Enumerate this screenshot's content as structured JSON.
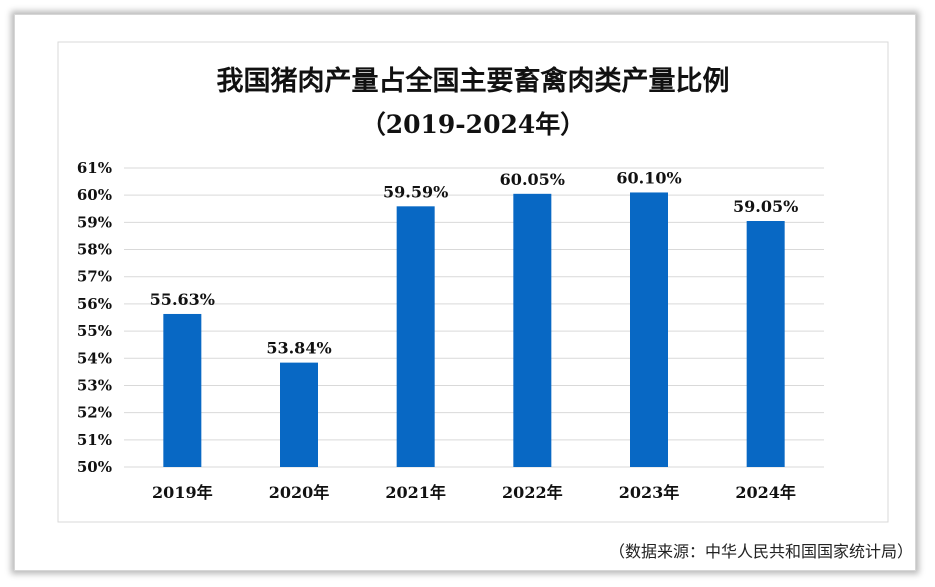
{
  "chart_data": {
    "type": "bar",
    "title": "我国猪肉产量占全国主要畜禽肉类产量比例",
    "subtitle": "（2019-2024年）",
    "categories": [
      "2019年",
      "2020年",
      "2021年",
      "2022年",
      "2023年",
      "2024年"
    ],
    "values": [
      55.63,
      53.84,
      59.59,
      60.05,
      60.1,
      59.05
    ],
    "value_labels": [
      "55.63%",
      "53.84%",
      "59.59%",
      "60.05%",
      "60.10%",
      "59.05%"
    ],
    "ylim": [
      50,
      61
    ],
    "yticks": [
      50,
      51,
      52,
      53,
      54,
      55,
      56,
      57,
      58,
      59,
      60,
      61
    ],
    "ytick_labels": [
      "50%",
      "51%",
      "52%",
      "53%",
      "54%",
      "55%",
      "56%",
      "57%",
      "58%",
      "59%",
      "60%",
      "61%"
    ],
    "xlabel": "",
    "ylabel": "",
    "grid": true,
    "bar_color": "#0868C4",
    "grid_color": "#d9d9d9"
  },
  "source_note": "（数据来源：中华人民共和国国家统计局）"
}
